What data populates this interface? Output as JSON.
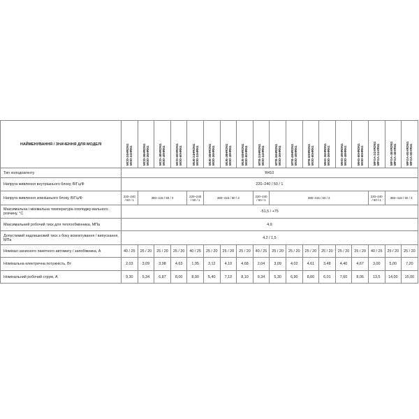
{
  "header_title": "НАЙМЕНУВАННЯ / ЗНАЧЕННЯ ДЛЯ МОДЕЛІ",
  "models": [
    {
      "indoor": "MCD-24HRDN1",
      "outdoor": "MOD-24HRN1"
    },
    {
      "indoor": "MCD-36HRDN1",
      "outdoor": "MOD-36HRN1"
    },
    {
      "indoor": "MCD-48HRDN1",
      "outdoor": "MOD-48HRN1"
    },
    {
      "indoor": "MCD-60HRDN1",
      "outdoor": "MOD-60HRN1"
    },
    {
      "indoor": "MUE-24HRDN1",
      "outdoor": "MOD-24HRN1"
    },
    {
      "indoor": "MUE-36HRDN1",
      "outdoor": "MOD-36HRN1"
    },
    {
      "indoor": "MUE-48HRDN1",
      "outdoor": "MOD-48HRN1"
    },
    {
      "indoor": "MUE-60HRDN1",
      "outdoor": "MOD-60HRN1"
    },
    {
      "indoor": "MTB-24HRDN1",
      "outdoor": "MOD-24HRN1"
    },
    {
      "indoor": "MTB-36HRDN1",
      "outdoor": "MOD-36HRN1"
    },
    {
      "indoor": "MTB-48HRDN1",
      "outdoor": "MOD-48HRN1"
    },
    {
      "indoor": "MTB-60HRDN1",
      "outdoor": "MOD-60HRN1"
    },
    {
      "indoor": "MHG-36HRDN1",
      "outdoor": "MOD-36HRN1"
    },
    {
      "indoor": "MHG-48HRDN1",
      "outdoor": "MOD-48HRN1"
    },
    {
      "indoor": "MHG-60HRDN1",
      "outdoor": "MOD-60HRN1"
    },
    {
      "indoor": "MFGA-24ARDN1",
      "outdoor": "MFGA-24ARN1"
    },
    {
      "indoor": "MFGA-48ARDN1",
      "outdoor": "MFGA-48ARN1"
    },
    {
      "indoor": "MFGA-60ARDN1",
      "outdoor": "MFGA-60ARN1"
    }
  ],
  "rows": {
    "refrigerant": {
      "label": "Тип холодоагенту",
      "value": "R410"
    },
    "indoor_power": {
      "label": "Напруга живлення внутрішнього блоку, В/Гц/Ф",
      "value": "220–240 / 50 / 1"
    },
    "outdoor_power": {
      "label": "Напруга живлення зовнішнього блоку, В/Гц/Ф",
      "single": "220–240 / 50 / 1",
      "three": "380–415 / 50 / 3"
    },
    "temperature": {
      "label": "Максимальна і мінімальна температура охолоджу-вального розчину, °C",
      "value": "-51,5 / +75"
    },
    "max_pressure": {
      "label": "Максимальний робочий тиск для теплообмінника, МПа",
      "value": "4,9"
    },
    "excess_pressure": {
      "label": "Допустимий надлишковий тиск з боку всмоктування / випускання, МПа",
      "value": "4,2 / 1,5"
    },
    "fuse": {
      "label": "Номінал захисного пакетного автомату / запобіжника, А",
      "values": [
        "40 / 25",
        "25 / 20",
        "25 / 20",
        "25 / 20",
        "40 / 25",
        "25 / 20",
        "25 / 20",
        "25 / 20",
        "40 / 25",
        "25 / 20",
        "25 / 20",
        "25 / 20",
        "25 / 20",
        "25 / 20",
        "25 / 20",
        "40 / 25",
        "25 / 20",
        "25 / 20"
      ]
    },
    "power": {
      "label": "Номінальна електрична потужність, Вт",
      "values": [
        "2,03",
        "3,09",
        "3,98",
        "4,63",
        "1,95",
        "3,12",
        "4,10",
        "4,68",
        "2,04",
        "3,09",
        "4,02",
        "4,61",
        "3,48",
        "4,40",
        "4,67",
        "3,00",
        "5,00",
        "7,20"
      ]
    },
    "current": {
      "label": "Номінальний робочий струм, А",
      "values": [
        "9,30",
        "5,34",
        "6,87",
        "8,00",
        "8,90",
        "5,40",
        "7,12",
        "8,10",
        "9,34",
        "5,30",
        "6,90",
        "8,00",
        "6,01",
        "7,60",
        "8,06",
        "13,5",
        "14,00",
        "15,00"
      ]
    }
  }
}
